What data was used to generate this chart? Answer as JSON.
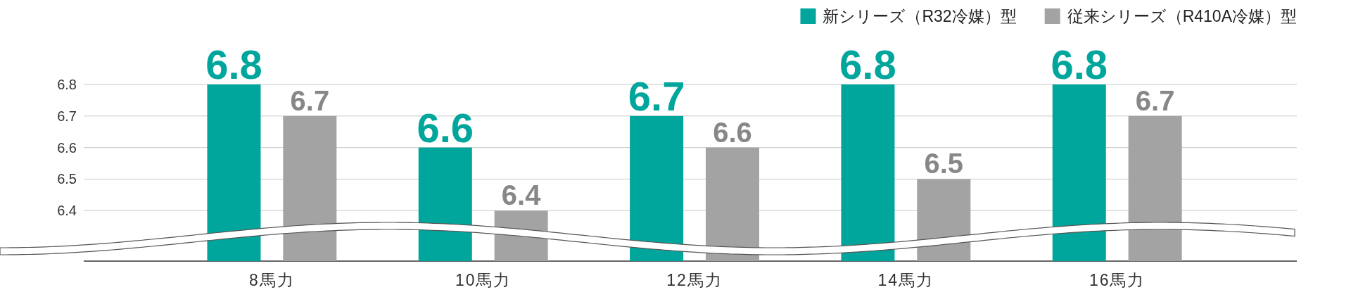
{
  "chart_data": {
    "type": "bar",
    "categories": [
      "8馬力",
      "10馬力",
      "12馬力",
      "14馬力",
      "16馬力"
    ],
    "series": [
      {
        "name": "新シリーズ（R32冷媒）型",
        "color": "#00a69c",
        "values": [
          6.8,
          6.6,
          6.7,
          6.8,
          6.8
        ]
      },
      {
        "name": "従来シリーズ（R410A冷媒）型",
        "color": "#a3a3a3",
        "values": [
          6.7,
          6.4,
          6.6,
          6.5,
          6.7
        ]
      }
    ],
    "ylim": [
      6.24,
      6.8
    ],
    "yticks": [
      6.4,
      6.5,
      6.6,
      6.7,
      6.8
    ],
    "grid": "y",
    "legend": "top right",
    "data_labels": true
  }
}
